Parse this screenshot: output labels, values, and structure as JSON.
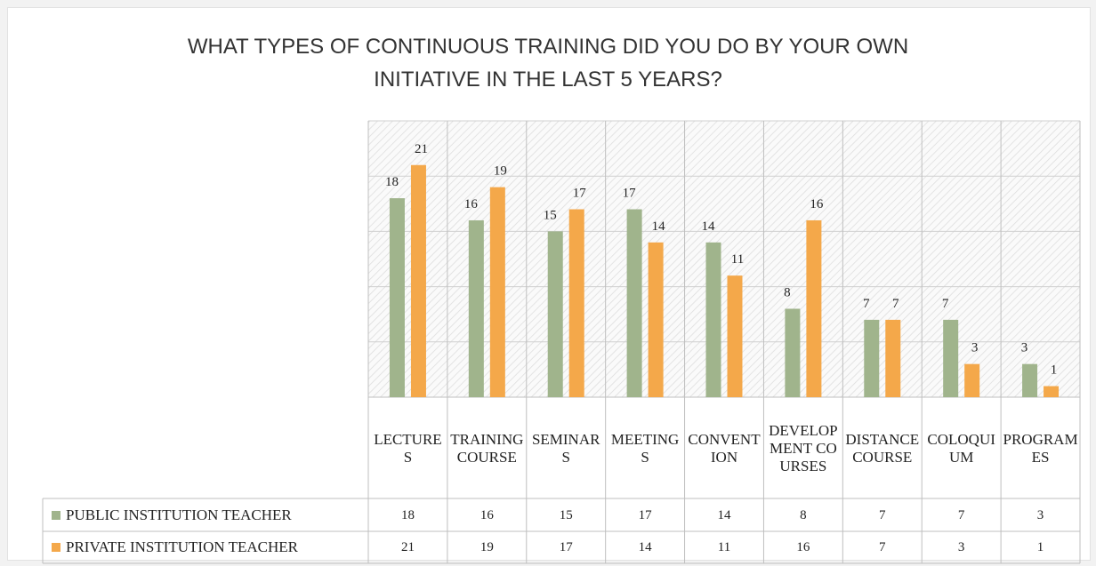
{
  "chart_data": {
    "type": "bar",
    "title": "WHAT TYPES OF CONTINUOUS TRAINING DID YOU DO BY YOUR OWN INITIATIVE IN THE LAST 5 YEARS?",
    "categories": [
      "LECTURES",
      "TRAINING COURSE",
      "SEMINARS",
      "MEETINGS",
      "CONVENTION",
      "DEVELOPMENT COURSES",
      "DISTANCE COURSE",
      "COLOQUIUM",
      "PROGRAMES"
    ],
    "series": [
      {
        "name": "PUBLIC INSTITUTION TEACHER",
        "color": "#a0b48c",
        "values": [
          18,
          16,
          15,
          17,
          14,
          8,
          7,
          7,
          3
        ]
      },
      {
        "name": "PRIVATE INSTITUTION TEACHER",
        "color": "#f4a84a",
        "values": [
          21,
          19,
          17,
          14,
          11,
          16,
          7,
          3,
          1
        ]
      }
    ],
    "ylim": [
      0,
      25
    ],
    "yticks": [
      0,
      5,
      10,
      15,
      20,
      25
    ],
    "grid": true,
    "data_table": true
  }
}
